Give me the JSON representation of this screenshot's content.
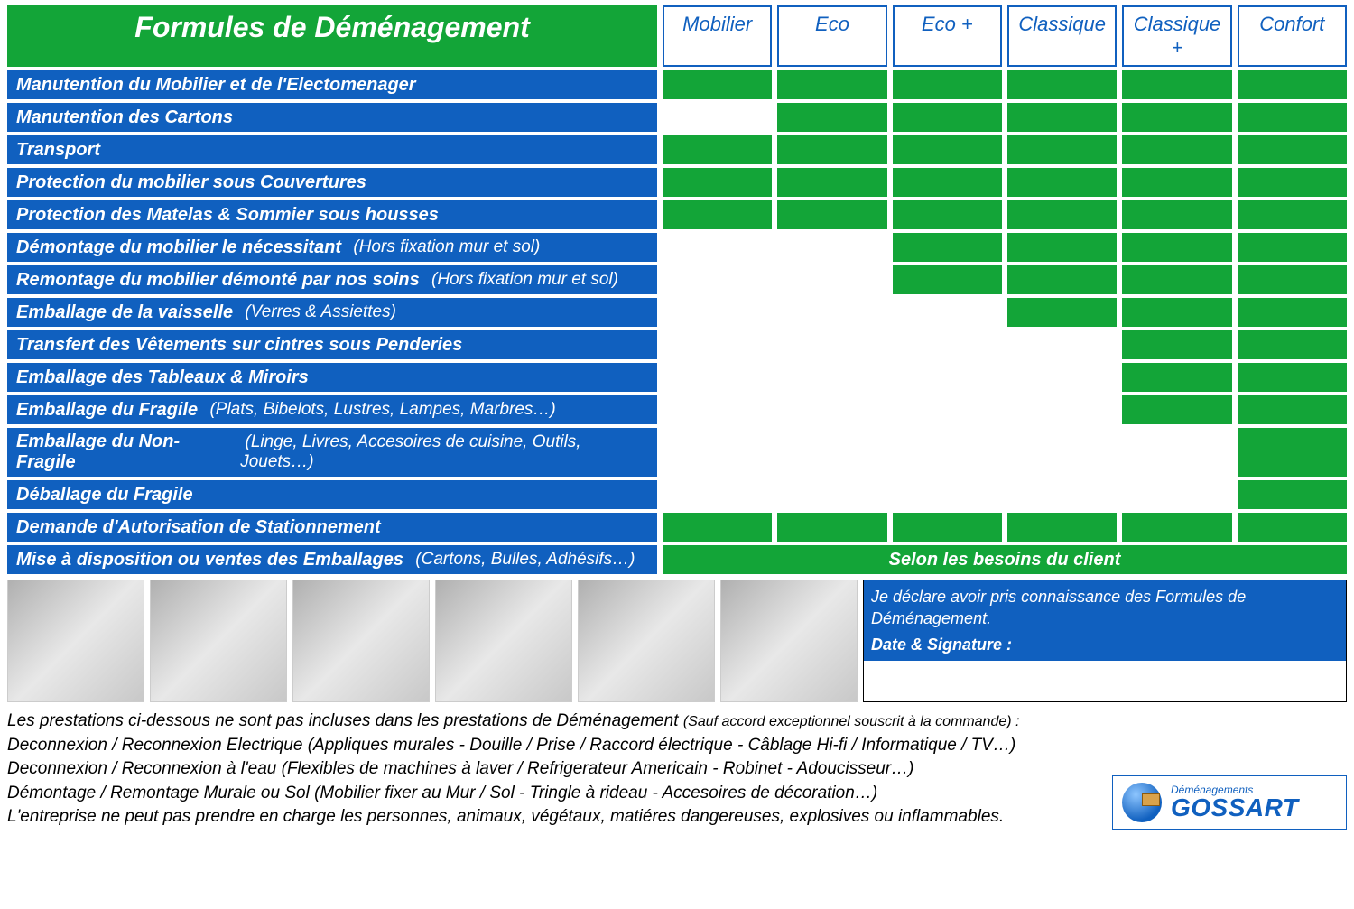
{
  "colors": {
    "blue": "#1060bf",
    "green": "#13a538",
    "white": "#ffffff"
  },
  "title": "Formules de Déménagement",
  "plans": [
    "Mobilier",
    "Eco",
    "Eco +",
    "Classique",
    "Classique +",
    "Confort"
  ],
  "rows": [
    {
      "label": "Manutention du Mobilier et de l'Electomenager",
      "sub": "",
      "cells": [
        1,
        1,
        1,
        1,
        1,
        1
      ]
    },
    {
      "label": "Manutention des Cartons",
      "sub": "",
      "cells": [
        0,
        1,
        1,
        1,
        1,
        1
      ]
    },
    {
      "label": "Transport",
      "sub": "",
      "cells": [
        1,
        1,
        1,
        1,
        1,
        1
      ]
    },
    {
      "label": "Protection du mobilier sous Couvertures",
      "sub": "",
      "cells": [
        1,
        1,
        1,
        1,
        1,
        1
      ]
    },
    {
      "label": "Protection des Matelas & Sommier sous housses",
      "sub": "",
      "cells": [
        1,
        1,
        1,
        1,
        1,
        1
      ]
    },
    {
      "label": "Démontage du mobilier le nécessitant",
      "sub": "(Hors fixation mur et sol)",
      "cells": [
        0,
        0,
        1,
        1,
        1,
        1
      ]
    },
    {
      "label": "Remontage du mobilier démonté par nos soins",
      "sub": "(Hors fixation mur et sol)",
      "cells": [
        0,
        0,
        1,
        1,
        1,
        1
      ]
    },
    {
      "label": "Emballage de la vaisselle",
      "sub": "(Verres & Assiettes)",
      "cells": [
        0,
        0,
        0,
        1,
        1,
        1
      ]
    },
    {
      "label": "Transfert des Vêtements sur cintres sous Penderies",
      "sub": "",
      "cells": [
        0,
        0,
        0,
        0,
        1,
        1
      ]
    },
    {
      "label": "Emballage des Tableaux & Miroirs",
      "sub": "",
      "cells": [
        0,
        0,
        0,
        0,
        1,
        1
      ]
    },
    {
      "label": "Emballage du Fragile",
      "sub": "(Plats, Bibelots, Lustres, Lampes, Marbres…)",
      "cells": [
        0,
        0,
        0,
        0,
        1,
        1
      ]
    },
    {
      "label": "Emballage du Non-Fragile",
      "sub": "(Linge, Livres, Accesoires de cuisine, Outils, Jouets…)",
      "cells": [
        0,
        0,
        0,
        0,
        0,
        1
      ]
    },
    {
      "label": "Déballage du Fragile",
      "sub": "",
      "cells": [
        0,
        0,
        0,
        0,
        0,
        1
      ]
    },
    {
      "label": "Demande d'Autorisation de Stationnement",
      "sub": "",
      "cells": [
        1,
        1,
        1,
        1,
        1,
        1
      ]
    }
  ],
  "lastRow": {
    "label": "Mise à disposition ou ventes des Emballages",
    "sub": "(Cartons, Bulles, Adhésifs…)",
    "note": "Selon les besoins du client"
  },
  "signature": {
    "ack": "Je déclare avoir pris connaissance des Formules de Déménagement.",
    "dateLabel": "Date & Signature :"
  },
  "disclaimer": {
    "lead": "Les prestations ci-dessous ne sont pas incluses dans les prestations de Déménagement",
    "leadSub": "(Sauf accord exceptionnel souscrit à la commande) :",
    "lines": [
      "Deconnexion / Reconnexion Electrique (Appliques murales - Douille / Prise  / Raccord électrique - Câblage Hi-fi / Informatique / TV…)",
      "Deconnexion / Reconnexion à l'eau (Flexibles de machines à laver / Refrigerateur Americain - Robinet - Adoucisseur…)",
      "Démontage / Remontage Murale ou Sol (Mobilier fixer au Mur / Sol - Tringle à rideau - Accesoires de décoration…)",
      "L'entreprise ne peut pas prendre en charge les personnes, animaux, végétaux, matiéres dangereuses, explosives ou inflammables."
    ]
  },
  "logo": {
    "small": "Déménagements",
    "big": "GOSSART"
  }
}
